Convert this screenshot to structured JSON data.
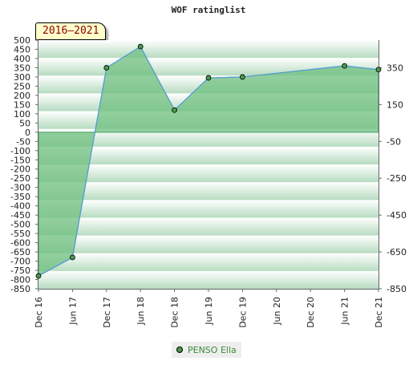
{
  "chart_data": {
    "type": "area",
    "title": "WOF ratinglist",
    "period": "2016–2021",
    "x": [
      "Dec 16",
      "Jun 17",
      "Dec 17",
      "Jun 18",
      "Dec 18",
      "Jun 19",
      "Dec 19",
      "Jun 21",
      "Dec 21"
    ],
    "x_ticks": [
      "Dec 16",
      "Jun 17",
      "Dec 17",
      "Jun 18",
      "Dec 18",
      "Jun 19",
      "Dec 19",
      "Jun 20",
      "Dec 20",
      "Jun 21",
      "Dec 21"
    ],
    "series": [
      {
        "name": "PENSO Ella",
        "values": [
          -780,
          -680,
          350,
          465,
          120,
          295,
          300,
          360,
          340
        ]
      }
    ],
    "y_left": {
      "ticks": [
        500,
        450,
        400,
        350,
        300,
        250,
        200,
        150,
        100,
        50,
        0,
        -50,
        -100,
        -150,
        -200,
        -250,
        -300,
        -350,
        -400,
        -450,
        -500,
        -550,
        -600,
        -650,
        -700,
        -750,
        -800,
        -850
      ],
      "ylim": [
        -850,
        500
      ]
    },
    "y_right": {
      "ticks": [
        350,
        150,
        -50,
        -250,
        -450,
        -650,
        -850
      ]
    },
    "grid": true,
    "legend_position": "bottom-center",
    "colors": {
      "fill": "#6fbf7f",
      "line": "#5599dd",
      "marker": "#4a9a4a",
      "band_light": "#ffffff",
      "band_dark": "#b5dbbf"
    }
  }
}
